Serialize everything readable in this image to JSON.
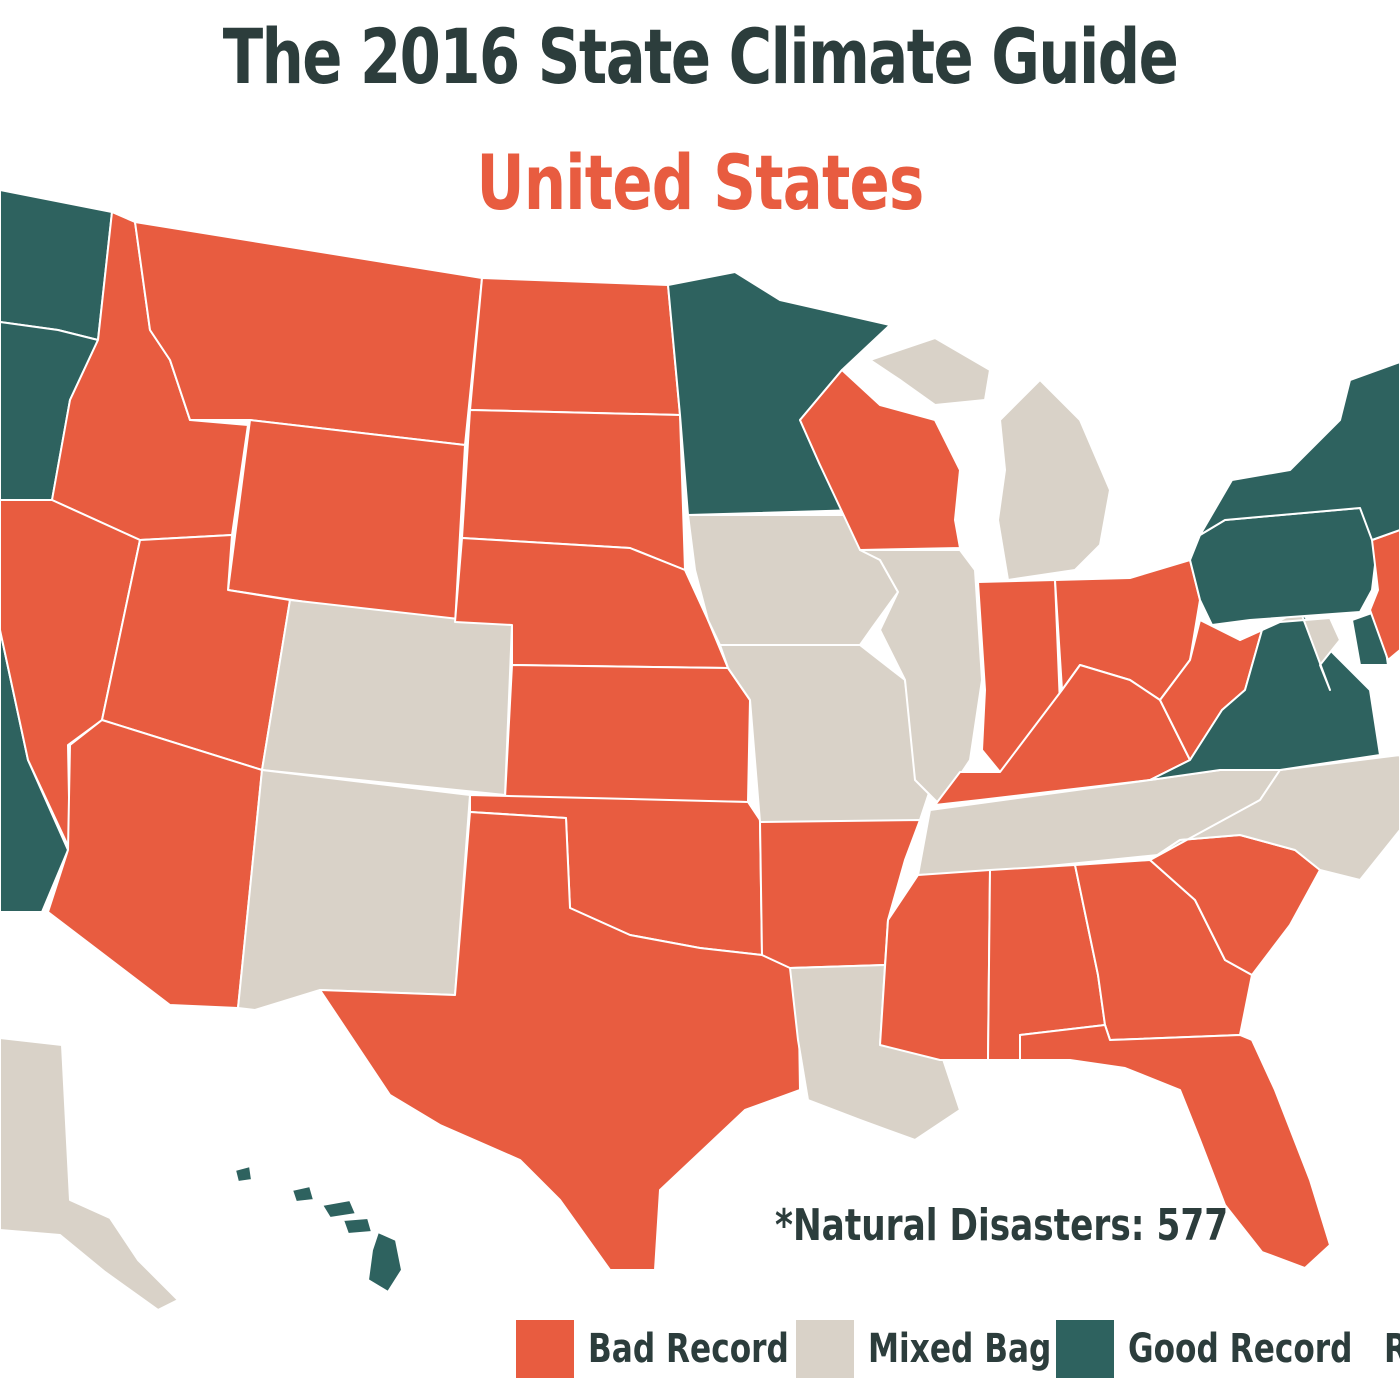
{
  "title": "The 2016 State Climate Guide",
  "subtitle": "United States",
  "note": "*Natural Disasters: 577",
  "colors": {
    "bad": "#e85c40",
    "mixed": "#d9d2c8",
    "good": "#2e625f",
    "title": "#2c3d3c"
  },
  "legend": {
    "bad": "Bad Record",
    "mixed": "Mixed Bag",
    "good": "Good Record",
    "cut": "R"
  },
  "states": {
    "WA": "good",
    "OR": "good",
    "CA": "good",
    "ID": "bad",
    "NV": "bad",
    "MT": "bad",
    "WY": "bad",
    "UT": "bad",
    "AZ": "bad",
    "CO": "mixed",
    "NM": "mixed",
    "ND": "bad",
    "SD": "bad",
    "NE": "bad",
    "KS": "bad",
    "OK": "bad",
    "TX": "bad",
    "MN": "good",
    "IA": "mixed",
    "MO": "mixed",
    "AR": "bad",
    "LA": "mixed",
    "WI": "bad",
    "IL": "mixed",
    "MI": "mixed",
    "IN": "bad",
    "OH": "bad",
    "KY": "bad",
    "TN": "mixed",
    "MS": "bad",
    "AL": "bad",
    "GA": "bad",
    "FL": "bad",
    "SC": "bad",
    "NC": "mixed",
    "VA": "good",
    "WV": "bad",
    "PA": "good",
    "NY": "good",
    "NJ": "bad",
    "MD": "mixed",
    "DE": "good",
    "AK": "mixed",
    "HI": "good"
  }
}
